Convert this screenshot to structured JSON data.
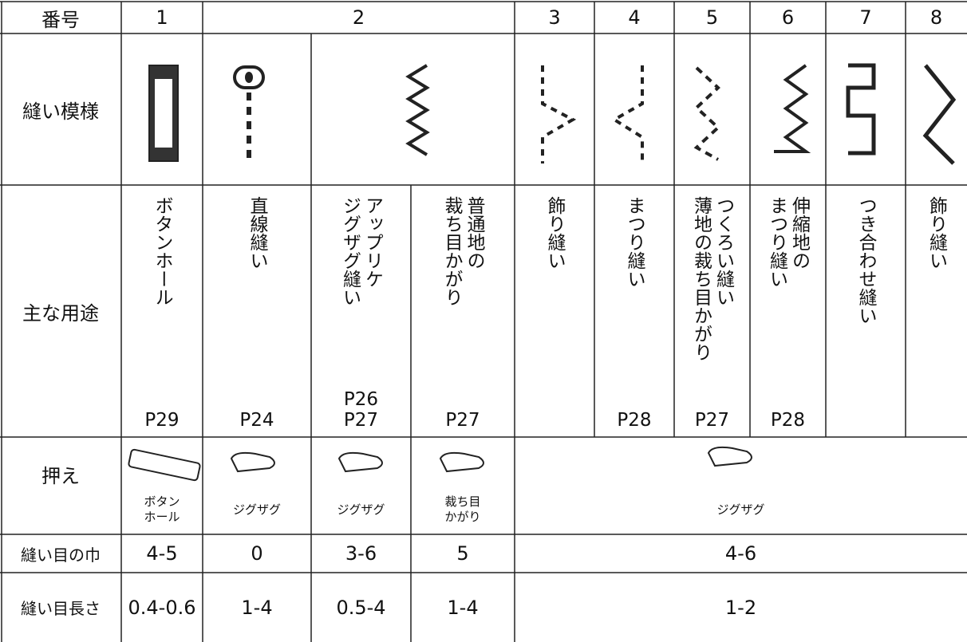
{
  "header": {
    "label": "番号",
    "numbers": [
      "1",
      "2",
      "3",
      "4",
      "5",
      "6",
      "7",
      "8"
    ]
  },
  "pattern_row": {
    "label": "縫い模様"
  },
  "use_row": {
    "label": "主な用途",
    "cells": [
      {
        "lines": [
          "ボタンホール"
        ],
        "pages": [
          "P29"
        ]
      },
      {
        "lines": [
          "直線縫い"
        ],
        "pages": [
          "P24"
        ]
      },
      {
        "lines": [
          "アップリケ",
          "ジグザグ縫い"
        ],
        "pages": [
          "P26",
          "P27"
        ]
      },
      {
        "lines": [
          "普通地の",
          "裁ち目かがり"
        ],
        "pages": [
          "P27"
        ]
      },
      {
        "lines": [
          "飾り縫い"
        ],
        "pages": []
      },
      {
        "lines": [
          "まつり縫い"
        ],
        "pages": [
          "P28"
        ]
      },
      {
        "lines": [
          "つくろい縫い",
          "薄地の裁ち目かがり"
        ],
        "pages": [
          "P27"
        ]
      },
      {
        "lines": [
          "伸縮地の",
          "まつり縫い"
        ],
        "pages": [
          "P28"
        ]
      },
      {
        "lines": [
          "つき合わせ縫い"
        ],
        "pages": []
      },
      {
        "lines": [
          "飾り縫い"
        ],
        "pages": []
      }
    ]
  },
  "foot_row": {
    "label": "押え",
    "cells": [
      [
        "ボタン",
        "ホール"
      ],
      [
        "ジグザグ"
      ],
      [
        "ジグザグ"
      ],
      [
        "裁ち目",
        "かがり"
      ],
      [
        "ジグザグ"
      ]
    ]
  },
  "width_row": {
    "label": "縫い目の巾",
    "cells": [
      "4-5",
      "0",
      "3-6",
      "5",
      "4-6"
    ]
  },
  "length_row": {
    "label": "縫い目長さ",
    "cells": [
      "0.4-0.6",
      "1-4",
      "0.5-4",
      "1-4",
      "1-2"
    ]
  }
}
